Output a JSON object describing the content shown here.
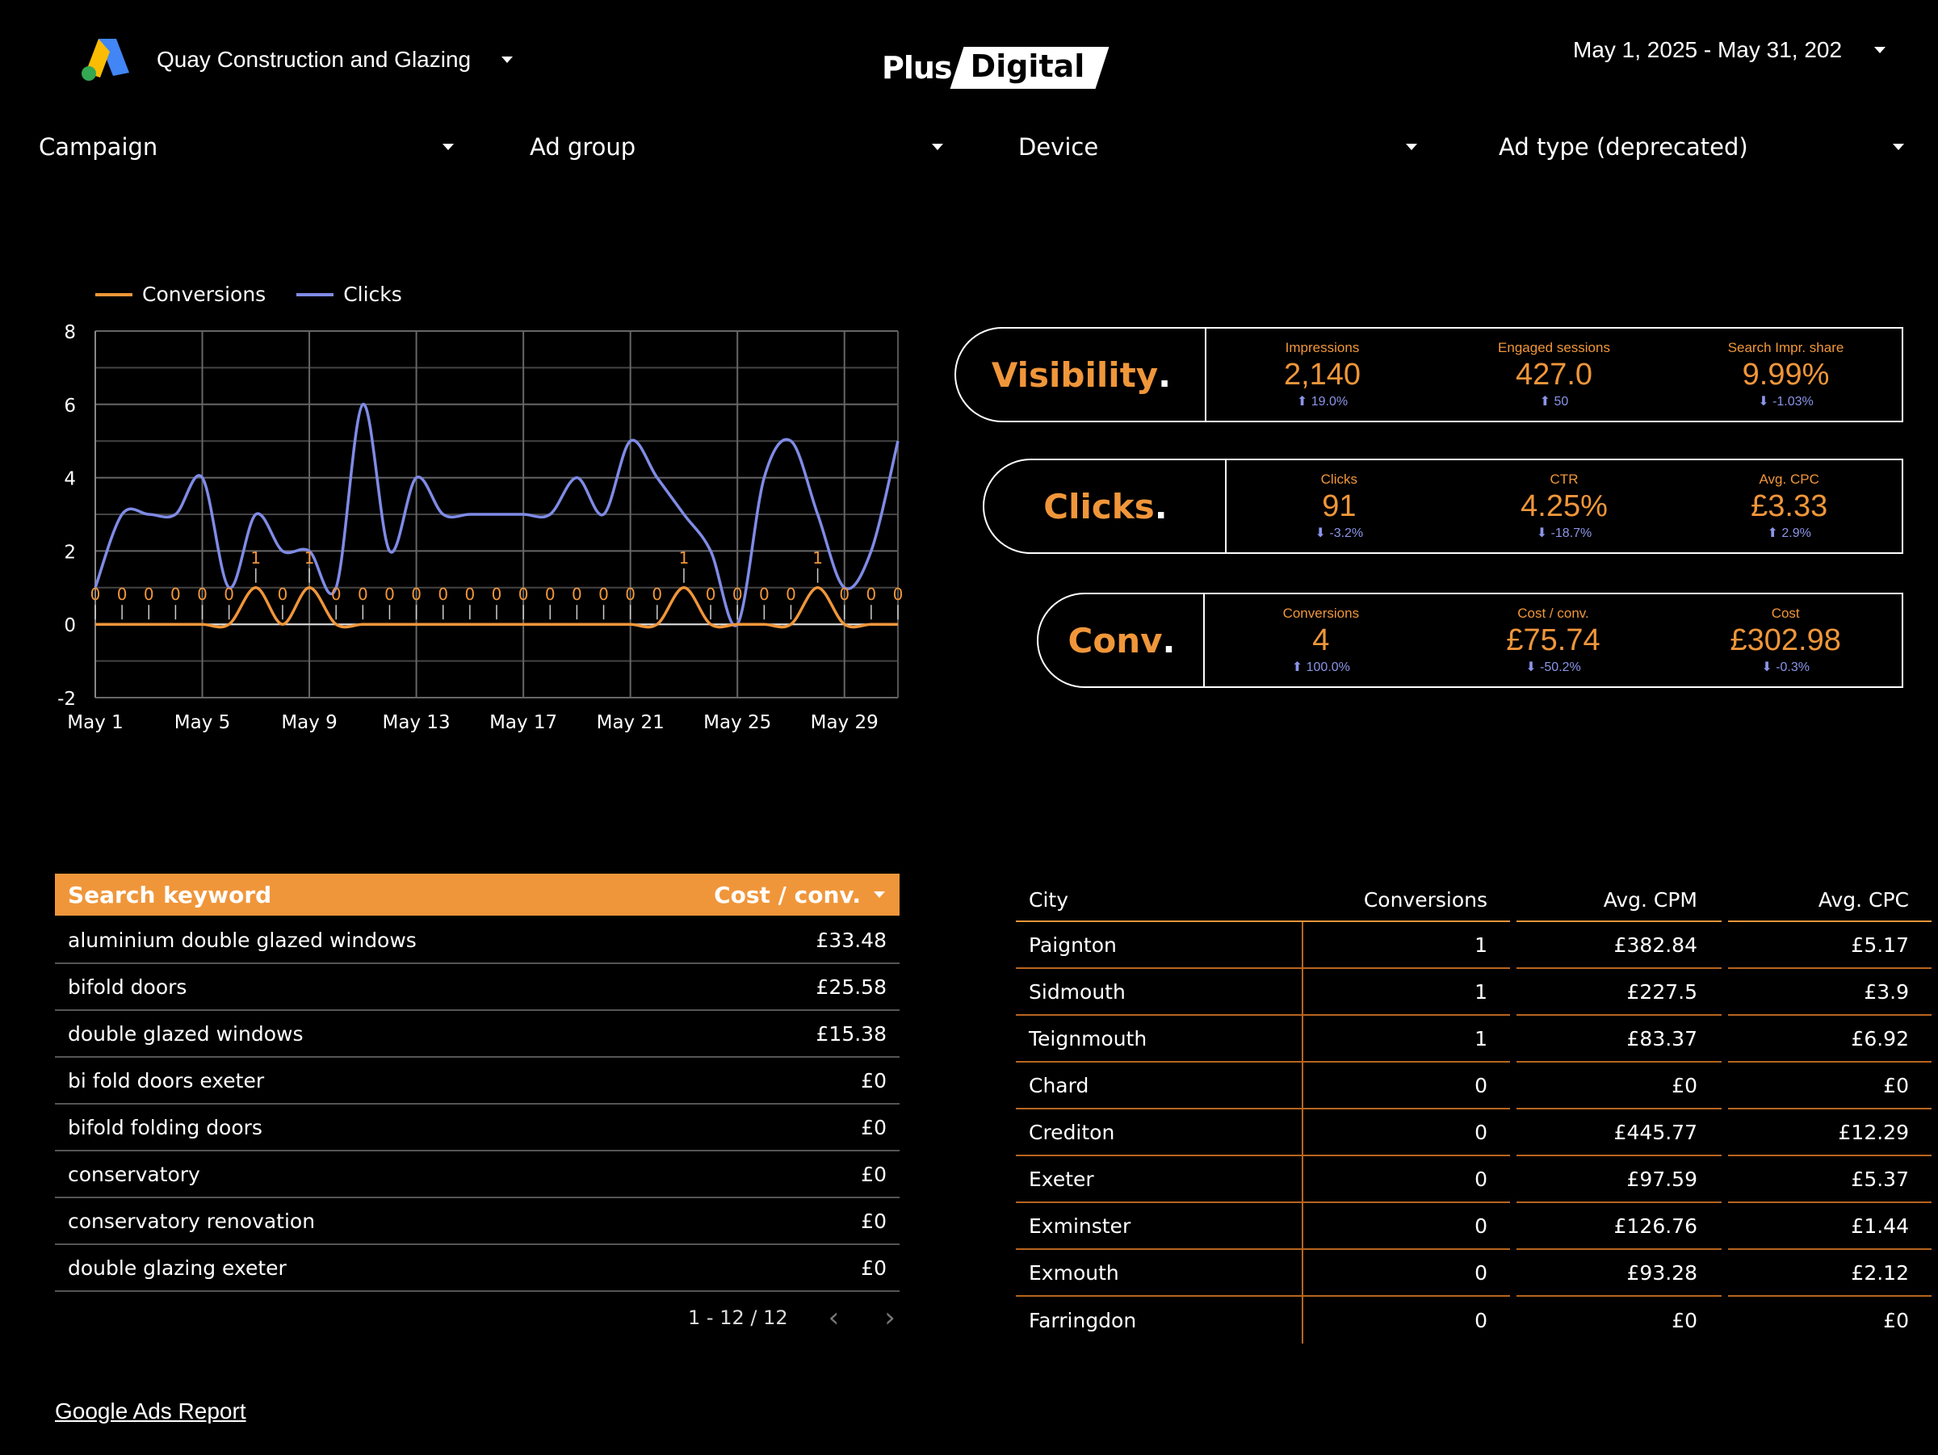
{
  "header": {
    "account_name": "Quay Construction and Glazing",
    "logo_plus": "Plus",
    "logo_digital": "Digital",
    "date_range": "May 1, 2025 - May 31, 202"
  },
  "filters": [
    "Campaign",
    "Ad group",
    "Device",
    "Ad type (deprecated)"
  ],
  "colors": {
    "accent": "#F0963A",
    "clicks_line": "#7F8BE6",
    "delta_blue": "#8B95E8",
    "background": "#000000"
  },
  "chart_data": {
    "type": "line",
    "x": [
      "May 1",
      "May 2",
      "May 3",
      "May 4",
      "May 5",
      "May 6",
      "May 7",
      "May 8",
      "May 9",
      "May 10",
      "May 11",
      "May 12",
      "May 13",
      "May 14",
      "May 15",
      "May 16",
      "May 17",
      "May 18",
      "May 19",
      "May 20",
      "May 21",
      "May 22",
      "May 23",
      "May 24",
      "May 25",
      "May 26",
      "May 27",
      "May 28",
      "May 29",
      "May 30",
      "May 31"
    ],
    "x_tick_labels": [
      "May 1",
      "May 5",
      "May 9",
      "May 13",
      "May 17",
      "May 21",
      "May 25",
      "May 29"
    ],
    "series": [
      {
        "name": "Conversions",
        "color": "#F0963A",
        "data_labels": true,
        "values": [
          0,
          0,
          0,
          0,
          0,
          0,
          1,
          0,
          1,
          0,
          0,
          0,
          0,
          0,
          0,
          0,
          0,
          0,
          0,
          0,
          0,
          0,
          1,
          0,
          0,
          0,
          0,
          1,
          0,
          0,
          0
        ]
      },
      {
        "name": "Clicks",
        "color": "#7F8BE6",
        "values": [
          1,
          3,
          3,
          3,
          4,
          1,
          3,
          2,
          2,
          1,
          6,
          2,
          4,
          3,
          3,
          3,
          3,
          3,
          4,
          3,
          5,
          4,
          3,
          2,
          0,
          4,
          5,
          3,
          1,
          2,
          5
        ]
      }
    ],
    "ylim": [
      -2,
      8
    ],
    "yticks": [
      -2,
      0,
      2,
      4,
      6,
      8
    ],
    "grid": true,
    "legend": "top-left"
  },
  "cards": [
    {
      "title": "Visibility",
      "dot": ".",
      "metrics": [
        {
          "label": "Impressions",
          "value": "2,140",
          "delta": "19.0%",
          "dir": "up"
        },
        {
          "label": "Engaged sessions",
          "value": "427.0",
          "delta": "50",
          "dir": "up"
        },
        {
          "label": "Search Impr. share",
          "value": "9.99%",
          "delta": "-1.03%",
          "dir": "down"
        }
      ]
    },
    {
      "title": "Clicks",
      "dot": ".",
      "metrics": [
        {
          "label": "Clicks",
          "value": "91",
          "delta": "-3.2%",
          "dir": "down"
        },
        {
          "label": "CTR",
          "value": "4.25%",
          "delta": "-18.7%",
          "dir": "down"
        },
        {
          "label": "Avg. CPC",
          "value": "£3.33",
          "delta": "2.9%",
          "dir": "up"
        }
      ]
    },
    {
      "title": "Conv",
      "dot": ".",
      "metrics": [
        {
          "label": "Conversions",
          "value": "4",
          "delta": "100.0%",
          "dir": "up"
        },
        {
          "label": "Cost / conv.",
          "value": "£75.74",
          "delta": "-50.2%",
          "dir": "down"
        },
        {
          "label": "Cost",
          "value": "£302.98",
          "delta": "-0.3%",
          "dir": "down"
        }
      ]
    }
  ],
  "keyword_table": {
    "headers": [
      "Search keyword",
      "Cost / conv."
    ],
    "rows": [
      [
        "aluminium double glazed windows",
        "£33.48"
      ],
      [
        "bifold doors",
        "£25.58"
      ],
      [
        "double glazed windows",
        "£15.38"
      ],
      [
        "bi fold doors exeter",
        "£0"
      ],
      [
        "bifold folding doors",
        "£0"
      ],
      [
        "conservatory",
        "£0"
      ],
      [
        "conservatory renovation",
        "£0"
      ],
      [
        "double glazing exeter",
        "£0"
      ]
    ],
    "pagination": "1 - 12 / 12"
  },
  "city_table": {
    "headers": [
      "City",
      "Conversions",
      "Avg. CPM",
      "Avg. CPC"
    ],
    "rows": [
      [
        "Paignton",
        "1",
        "£382.84",
        "£5.17"
      ],
      [
        "Sidmouth",
        "1",
        "£227.5",
        "£3.9"
      ],
      [
        "Teignmouth",
        "1",
        "£83.37",
        "£6.92"
      ],
      [
        "Chard",
        "0",
        "£0",
        "£0"
      ],
      [
        "Crediton",
        "0",
        "£445.77",
        "£12.29"
      ],
      [
        "Exeter",
        "0",
        "£97.59",
        "£5.37"
      ],
      [
        "Exminster",
        "0",
        "£126.76",
        "£1.44"
      ],
      [
        "Exmouth",
        "0",
        "£93.28",
        "£2.12"
      ],
      [
        "Farringdon",
        "0",
        "£0",
        "£0"
      ]
    ]
  },
  "footer": {
    "link": "Google Ads Report"
  }
}
